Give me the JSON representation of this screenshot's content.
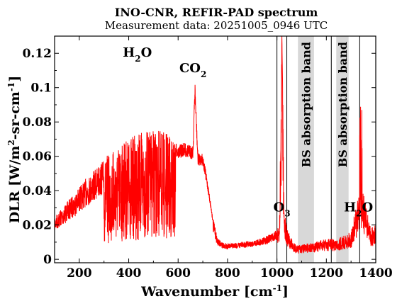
{
  "chart_data": {
    "type": "line",
    "title": "INO-CNR, REFIR-PAD spectrum",
    "subtitle": "Measurement data: 20251005_0946 UTC",
    "xlabel": {
      "main": "Wavenumber [cm",
      "sup": "-1",
      "tail": "]"
    },
    "ylabel": {
      "p1": "DLR [W/m",
      "sup1": "2",
      "p2": "-sr-cm",
      "sup2": "-1",
      "p3": "]"
    },
    "xlim": [
      100,
      1400
    ],
    "ylim": [
      -0.002,
      0.13
    ],
    "x_ticks": [
      200,
      400,
      600,
      800,
      1000,
      1200,
      1400
    ],
    "y_ticks": [
      0,
      0.02,
      0.04,
      0.06,
      0.08,
      0.1,
      0.12
    ],
    "x_tick_labels": [
      "200",
      "400",
      "600",
      "800",
      "1000",
      "1200",
      "1400"
    ],
    "y_tick_labels": [
      "0",
      "0.02",
      "0.04",
      "0.06",
      "0.08",
      "0.1",
      "0.12"
    ],
    "grid": false,
    "series": [
      {
        "color": "#ff0000",
        "x": [
          100,
          130,
          160,
          190,
          220,
          250,
          280,
          310,
          340,
          370,
          400,
          430,
          460,
          490,
          520,
          550,
          580,
          600,
          620,
          640,
          660,
          668,
          680,
          700,
          720,
          740,
          760,
          780,
          800,
          850,
          900,
          950,
          1000,
          1010,
          1020,
          1030,
          1040,
          1060,
          1080,
          1150,
          1200,
          1240,
          1300,
          1320,
          1340,
          1360,
          1380,
          1400
        ],
        "y": [
          0.025,
          0.03,
          0.035,
          0.04,
          0.046,
          0.05,
          0.055,
          0.06,
          0.064,
          0.068,
          0.071,
          0.073,
          0.074,
          0.075,
          0.075,
          0.074,
          0.071,
          0.066,
          0.068,
          0.067,
          0.066,
          0.105,
          0.062,
          0.062,
          0.045,
          0.025,
          0.012,
          0.01,
          0.009,
          0.01,
          0.011,
          0.013,
          0.017,
          0.02,
          0.13,
          0.03,
          0.018,
          0.012,
          0.008,
          0.01,
          0.012,
          0.012,
          0.016,
          0.03,
          0.045,
          0.032,
          0.018,
          0.02
        ]
      }
    ],
    "bands": [
      {
        "label": "BS absorption band",
        "x_start": 1085,
        "x_end": 1150
      },
      {
        "label": "BS absorption band",
        "x_start": 1240,
        "x_end": 1290
      }
    ],
    "vlines": [
      1000,
      1040,
      1220,
      1335
    ],
    "annotations": [
      {
        "main": "H",
        "sub": "2",
        "tail": "O",
        "x": 435,
        "y": 0.118
      },
      {
        "main": "CO",
        "sub": "2",
        "tail": "",
        "x": 660,
        "y": 0.109
      },
      {
        "main": "O",
        "sub": "3",
        "tail": "",
        "x": 1020,
        "y": 0.028
      },
      {
        "main": "H",
        "sub": "2",
        "tail": "O",
        "x": 1330,
        "y": 0.028
      }
    ]
  }
}
